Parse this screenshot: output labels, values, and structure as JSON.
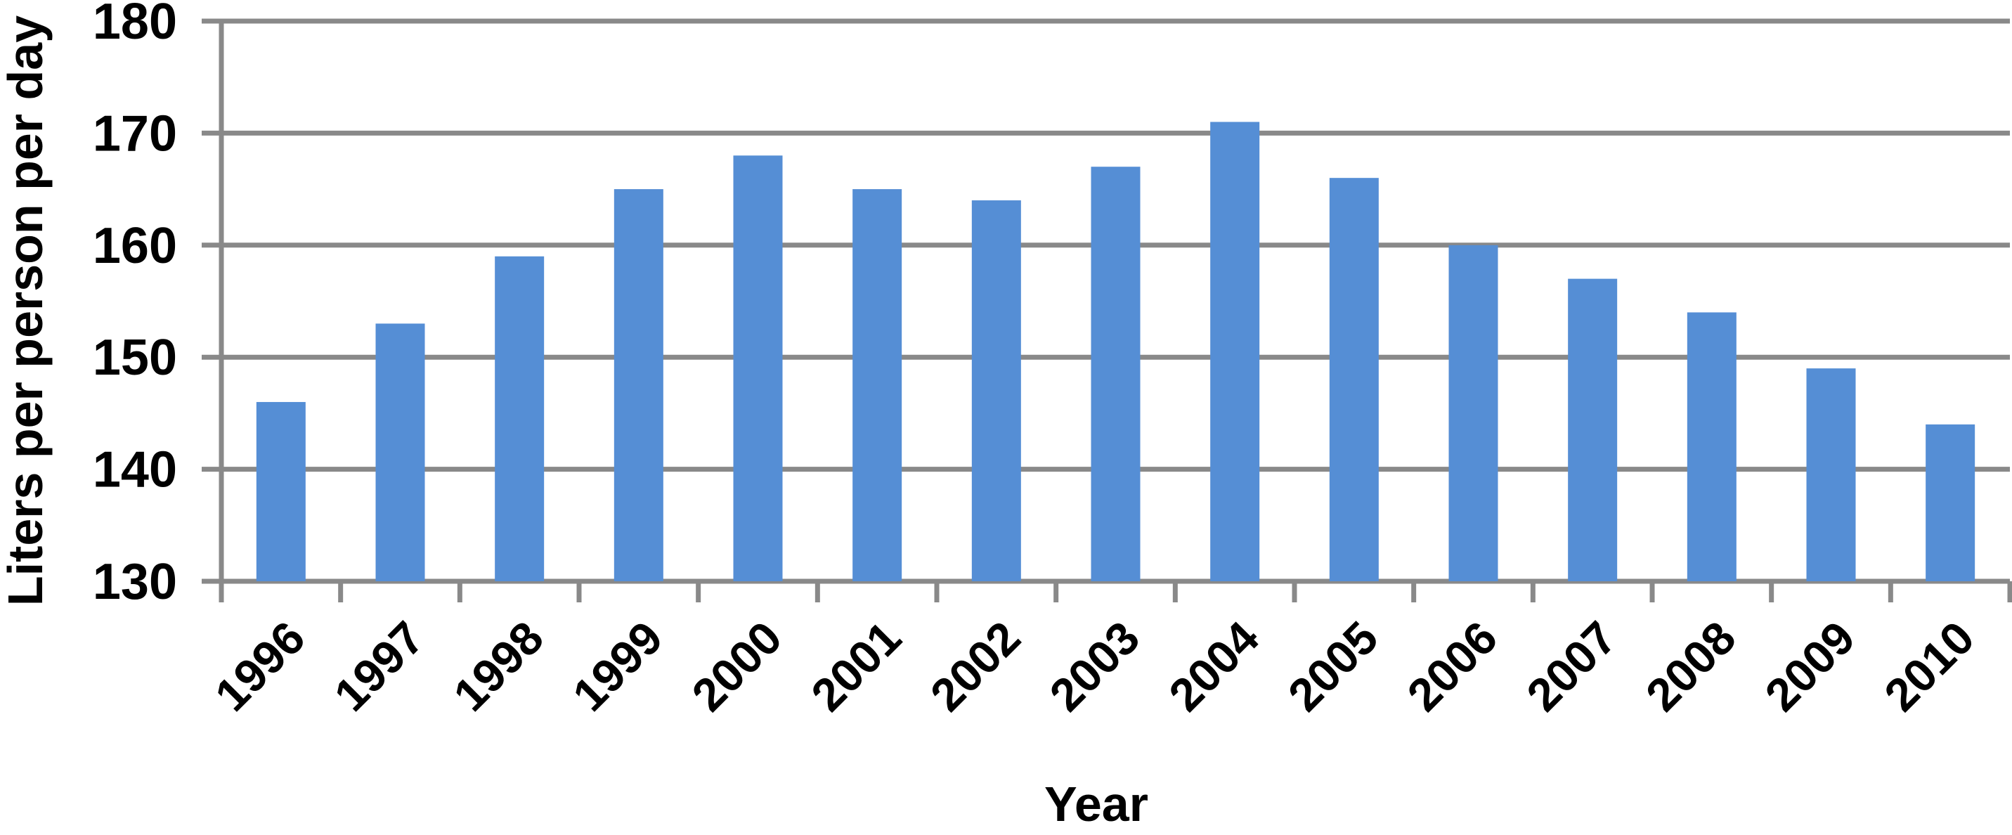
{
  "chart_data": {
    "type": "bar",
    "categories": [
      "1996",
      "1997",
      "1998",
      "1999",
      "2000",
      "2001",
      "2002",
      "2003",
      "2004",
      "2005",
      "2006",
      "2007",
      "2008",
      "2009",
      "2010"
    ],
    "values": [
      146,
      153,
      159,
      165,
      168,
      165,
      164,
      167,
      171,
      166,
      160,
      157,
      154,
      149,
      144
    ],
    "title": "",
    "xlabel": "Year",
    "ylabel": "Liters per person per day",
    "ylim": [
      130,
      180
    ],
    "yticks": [
      130,
      140,
      150,
      160,
      170,
      180
    ],
    "grid": true,
    "legend_position": "none",
    "bar_color": "#558ED5",
    "axis_color": "#898989",
    "text_color": "#000000",
    "background_color": "#FFFFFF"
  }
}
